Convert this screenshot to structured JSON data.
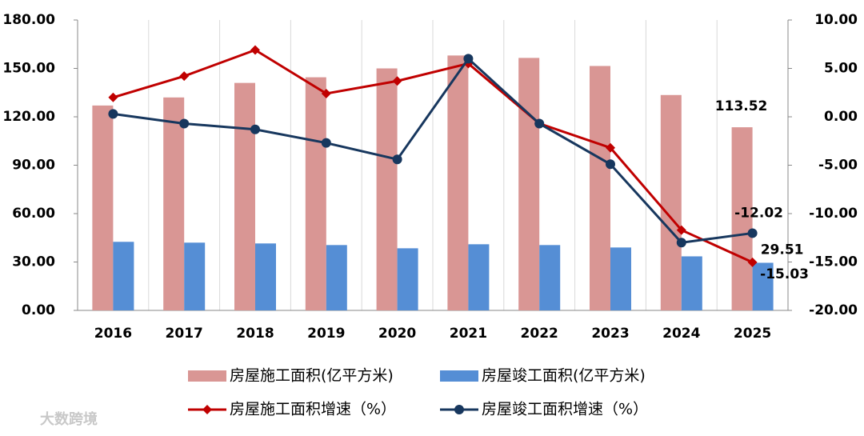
{
  "chart_data": {
    "type": "bar",
    "categories": [
      "2016",
      "2017",
      "2018",
      "2019",
      "2020",
      "2021",
      "2022",
      "2023",
      "2024",
      "2025"
    ],
    "series": [
      {
        "name": "房屋施工面积(亿平方米)",
        "type": "bar",
        "color": "#d99694",
        "values": [
          127,
          132,
          141,
          144.5,
          150,
          158,
          156.5,
          151.5,
          133.5,
          113.52
        ]
      },
      {
        "name": "房屋竣工面积(亿平方米)",
        "type": "bar",
        "color": "#558ed5",
        "values": [
          42.5,
          42,
          41.5,
          40.5,
          38.5,
          41,
          40.5,
          39,
          33.5,
          29.51
        ]
      },
      {
        "name": "房屋施工面积增速（%）",
        "type": "line",
        "axis": "y2",
        "color": "#c00000",
        "marker": "diamond",
        "values": [
          2.0,
          4.2,
          6.9,
          2.4,
          3.7,
          5.5,
          -0.7,
          -3.2,
          -11.7,
          -15.03
        ]
      },
      {
        "name": "房屋竣工面积增速（%）",
        "type": "line",
        "axis": "y2",
        "color": "#17375e",
        "marker": "circle",
        "values": [
          0.3,
          -0.7,
          -1.3,
          -2.7,
          -4.4,
          6.0,
          -0.7,
          -4.9,
          -13.0,
          -12.02
        ]
      }
    ],
    "ylim": [
      0,
      180
    ],
    "yticks": [
      {
        "value": 0,
        "label": "0.00"
      },
      {
        "value": 30,
        "label": "30.00"
      },
      {
        "value": 60,
        "label": "60.00"
      },
      {
        "value": 90,
        "label": "90.00"
      },
      {
        "value": 120,
        "label": "120.00"
      },
      {
        "value": 150,
        "label": "150.00"
      },
      {
        "value": 180,
        "label": "180.00"
      }
    ],
    "y2lim": [
      -20,
      10
    ],
    "y2ticks": [
      {
        "value": -20,
        "label": "-20.00"
      },
      {
        "value": -15,
        "label": "-15.00"
      },
      {
        "value": -10,
        "label": "-10.00"
      },
      {
        "value": -5,
        "label": "-5.00"
      },
      {
        "value": 0,
        "label": "0.00"
      },
      {
        "value": 5,
        "label": "5.00"
      },
      {
        "value": 10,
        "label": "10.00"
      }
    ],
    "legend": "bottom",
    "watermark": "大数跨境"
  }
}
